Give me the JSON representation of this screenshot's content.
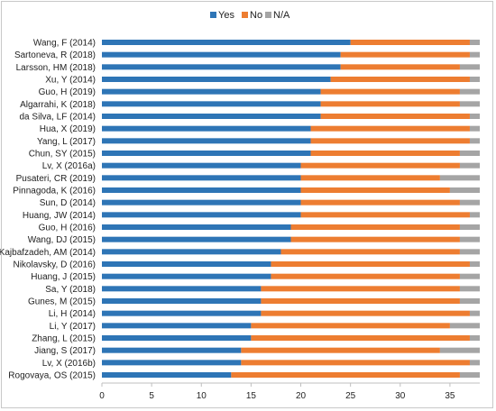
{
  "chart_data": {
    "type": "bar",
    "orientation": "horizontal",
    "stacked": true,
    "categories": [
      "Wang, F (2014)",
      "Sartoneva, R (2018)",
      "Larsson, HM (2018)",
      "Xu, Y (2014)",
      "Guo, H (2019)",
      "Algarrahi, K (2018)",
      "da Silva, LF (2014)",
      "Hua, X (2019)",
      "Yang, L (2017)",
      "Chun, SY (2015)",
      "Lv, X (2016a)",
      "Pusateri, CR (2019)",
      "Pinnagoda, K (2016)",
      "Sun, D (2014)",
      "Huang, JW (2014)",
      "Guo, H (2016)",
      "Wang, DJ (2015)",
      "Kajbafzadeh, AM (2014)",
      "Nikolavsky, D (2016)",
      "Huang, J (2015)",
      "Sa, Y (2018)",
      "Gunes, M (2015)",
      "Li, H (2014)",
      "Li, Y (2017)",
      "Zhang, L (2015)",
      "Jiang, S (2017)",
      "Lv, X (2016b)",
      "Rogovaya, OS (2015)"
    ],
    "series": [
      {
        "name": "Yes",
        "color": "#2E75B6",
        "values": [
          25,
          24,
          24,
          23,
          22,
          22,
          22,
          21,
          21,
          21,
          20,
          20,
          20,
          20,
          20,
          19,
          19,
          18,
          17,
          17,
          16,
          16,
          16,
          15,
          15,
          14,
          14,
          13
        ]
      },
      {
        "name": "No",
        "color": "#ED7D31",
        "values": [
          12,
          13,
          12,
          14,
          14,
          14,
          15,
          16,
          16,
          15,
          16,
          14,
          15,
          16,
          17,
          17,
          17,
          18,
          20,
          19,
          20,
          20,
          21,
          20,
          22,
          20,
          23,
          23
        ]
      },
      {
        "name": "N/A",
        "color": "#A5A5A5",
        "values": [
          1,
          1,
          2,
          1,
          2,
          2,
          1,
          1,
          1,
          2,
          2,
          4,
          3,
          2,
          1,
          2,
          2,
          2,
          1,
          2,
          2,
          2,
          1,
          3,
          1,
          4,
          1,
          2
        ]
      }
    ],
    "xlim": [
      0,
      38
    ],
    "x_ticks": [
      0,
      5,
      10,
      15,
      20,
      25,
      30,
      35
    ],
    "legend_position": "top",
    "grid": false
  }
}
